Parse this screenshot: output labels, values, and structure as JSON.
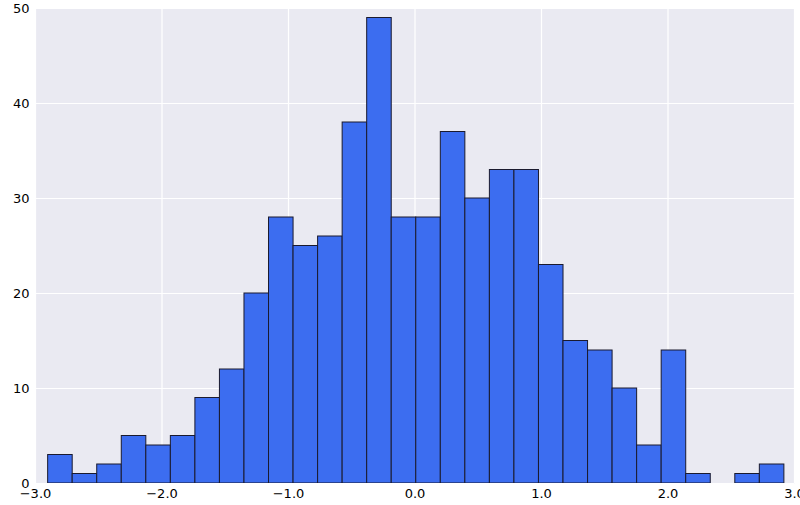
{
  "chart_data": {
    "type": "histogram",
    "bins": [
      -2.9,
      -2.706,
      -2.512,
      -2.318,
      -2.124,
      -1.93,
      -1.736,
      -1.542,
      -1.348,
      -1.154,
      -0.96,
      -0.766,
      -0.572,
      -0.378,
      -0.184,
      0.01,
      0.204,
      0.398,
      0.592,
      0.786,
      0.98,
      1.174,
      1.368,
      1.562,
      1.756,
      1.95,
      2.144,
      2.338,
      2.532,
      2.726,
      2.92
    ],
    "values": [
      3,
      1,
      2,
      5,
      4,
      5,
      9,
      12,
      20,
      28,
      25,
      26,
      38,
      49,
      28,
      28,
      37,
      30,
      33,
      33,
      23,
      15,
      14,
      10,
      4,
      14,
      1,
      0,
      1,
      2
    ],
    "color": "#3c6df0",
    "xlim": [
      -3,
      3
    ],
    "xticks": [
      -3,
      -2,
      -1,
      0,
      1,
      2,
      3
    ],
    "ylim": [
      0,
      50
    ],
    "yticks": [
      0,
      10,
      20,
      30,
      40,
      50
    ],
    "grid": true
  }
}
